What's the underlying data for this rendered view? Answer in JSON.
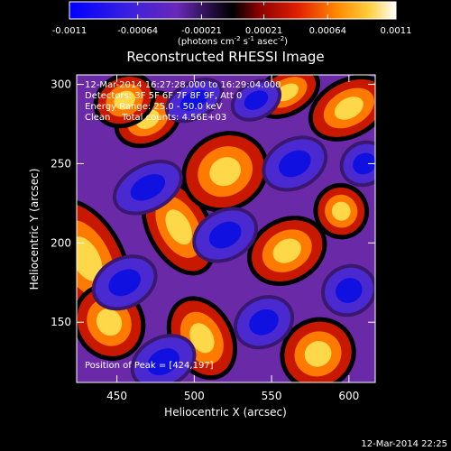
{
  "colorbar": {
    "ticks": [
      "-0.0011",
      "-0.00064",
      "-0.00021",
      "0.00021",
      "0.00064",
      "0.0011"
    ],
    "tick_values": [
      -0.0011,
      -0.00064,
      -0.00021,
      0.00021,
      0.00064,
      0.0011
    ],
    "unit_prefix": "(photons cm",
    "unit_exp1": "-2",
    "unit_mid": " s",
    "unit_exp2": "-1",
    "unit_mid2": " asec",
    "unit_exp3": "-2",
    "unit_suffix": ")"
  },
  "chart_data": {
    "type": "heatmap",
    "title": "Reconstructed RHESSI Image",
    "xlabel": "Heliocentric X (arcsec)",
    "ylabel": "Heliocentric Y (arcsec)",
    "xlim": [
      424,
      617
    ],
    "ylim": [
      112,
      306
    ],
    "xticks": [
      450,
      500,
      550,
      600
    ],
    "yticks": [
      150,
      200,
      250,
      300
    ],
    "colorbar_range": [
      -0.0011,
      0.0011
    ],
    "colormap": "blue-purple-black-red-orange-yellow-white",
    "peak_position": [
      424,
      197
    ],
    "annotations": [
      "12-Mar-2014 16:27:28.000 to 16:29:04.000",
      "Detectors: 3F 5F 6F 7F 8F 9F, Att 0",
      "Energy Range: 25.0 - 50.0 keV",
      "Clean    Total counts: 4.56E+03",
      "Position of Peak = [424,197]"
    ]
  },
  "footer": {
    "timestamp": "12-Mar-2014 22:25"
  }
}
